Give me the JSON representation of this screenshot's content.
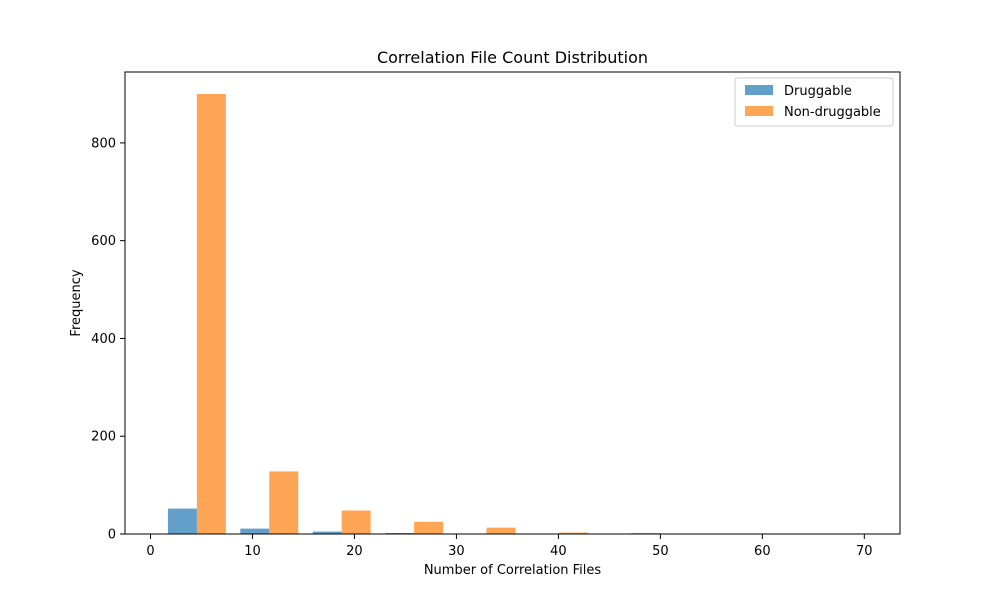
{
  "chart_data": {
    "type": "bar",
    "title": "Correlation File Count Distribution",
    "xlabel": "Number of Correlation Files",
    "ylabel": "Frequency",
    "xlim": [
      -2.5,
      73.5
    ],
    "ylim": [
      0,
      945
    ],
    "x_ticks": [
      0,
      10,
      20,
      30,
      40,
      50,
      60,
      70
    ],
    "y_ticks": [
      0,
      200,
      400,
      600,
      800
    ],
    "grid": false,
    "legend_position": "top-right",
    "bin_edges": [
      1,
      8.1,
      15.2,
      22.3,
      29.4,
      36.5,
      43.6,
      50.7,
      57.8,
      64.9,
      72
    ],
    "series": [
      {
        "name": "Druggable",
        "color": "#1f77b4",
        "values": [
          52,
          11,
          5,
          2,
          0,
          0,
          0,
          0,
          0,
          0
        ]
      },
      {
        "name": "Non-druggable",
        "color": "#ff7f0e",
        "values": [
          900,
          128,
          48,
          25,
          13,
          3,
          2,
          0,
          0,
          0
        ]
      }
    ]
  }
}
